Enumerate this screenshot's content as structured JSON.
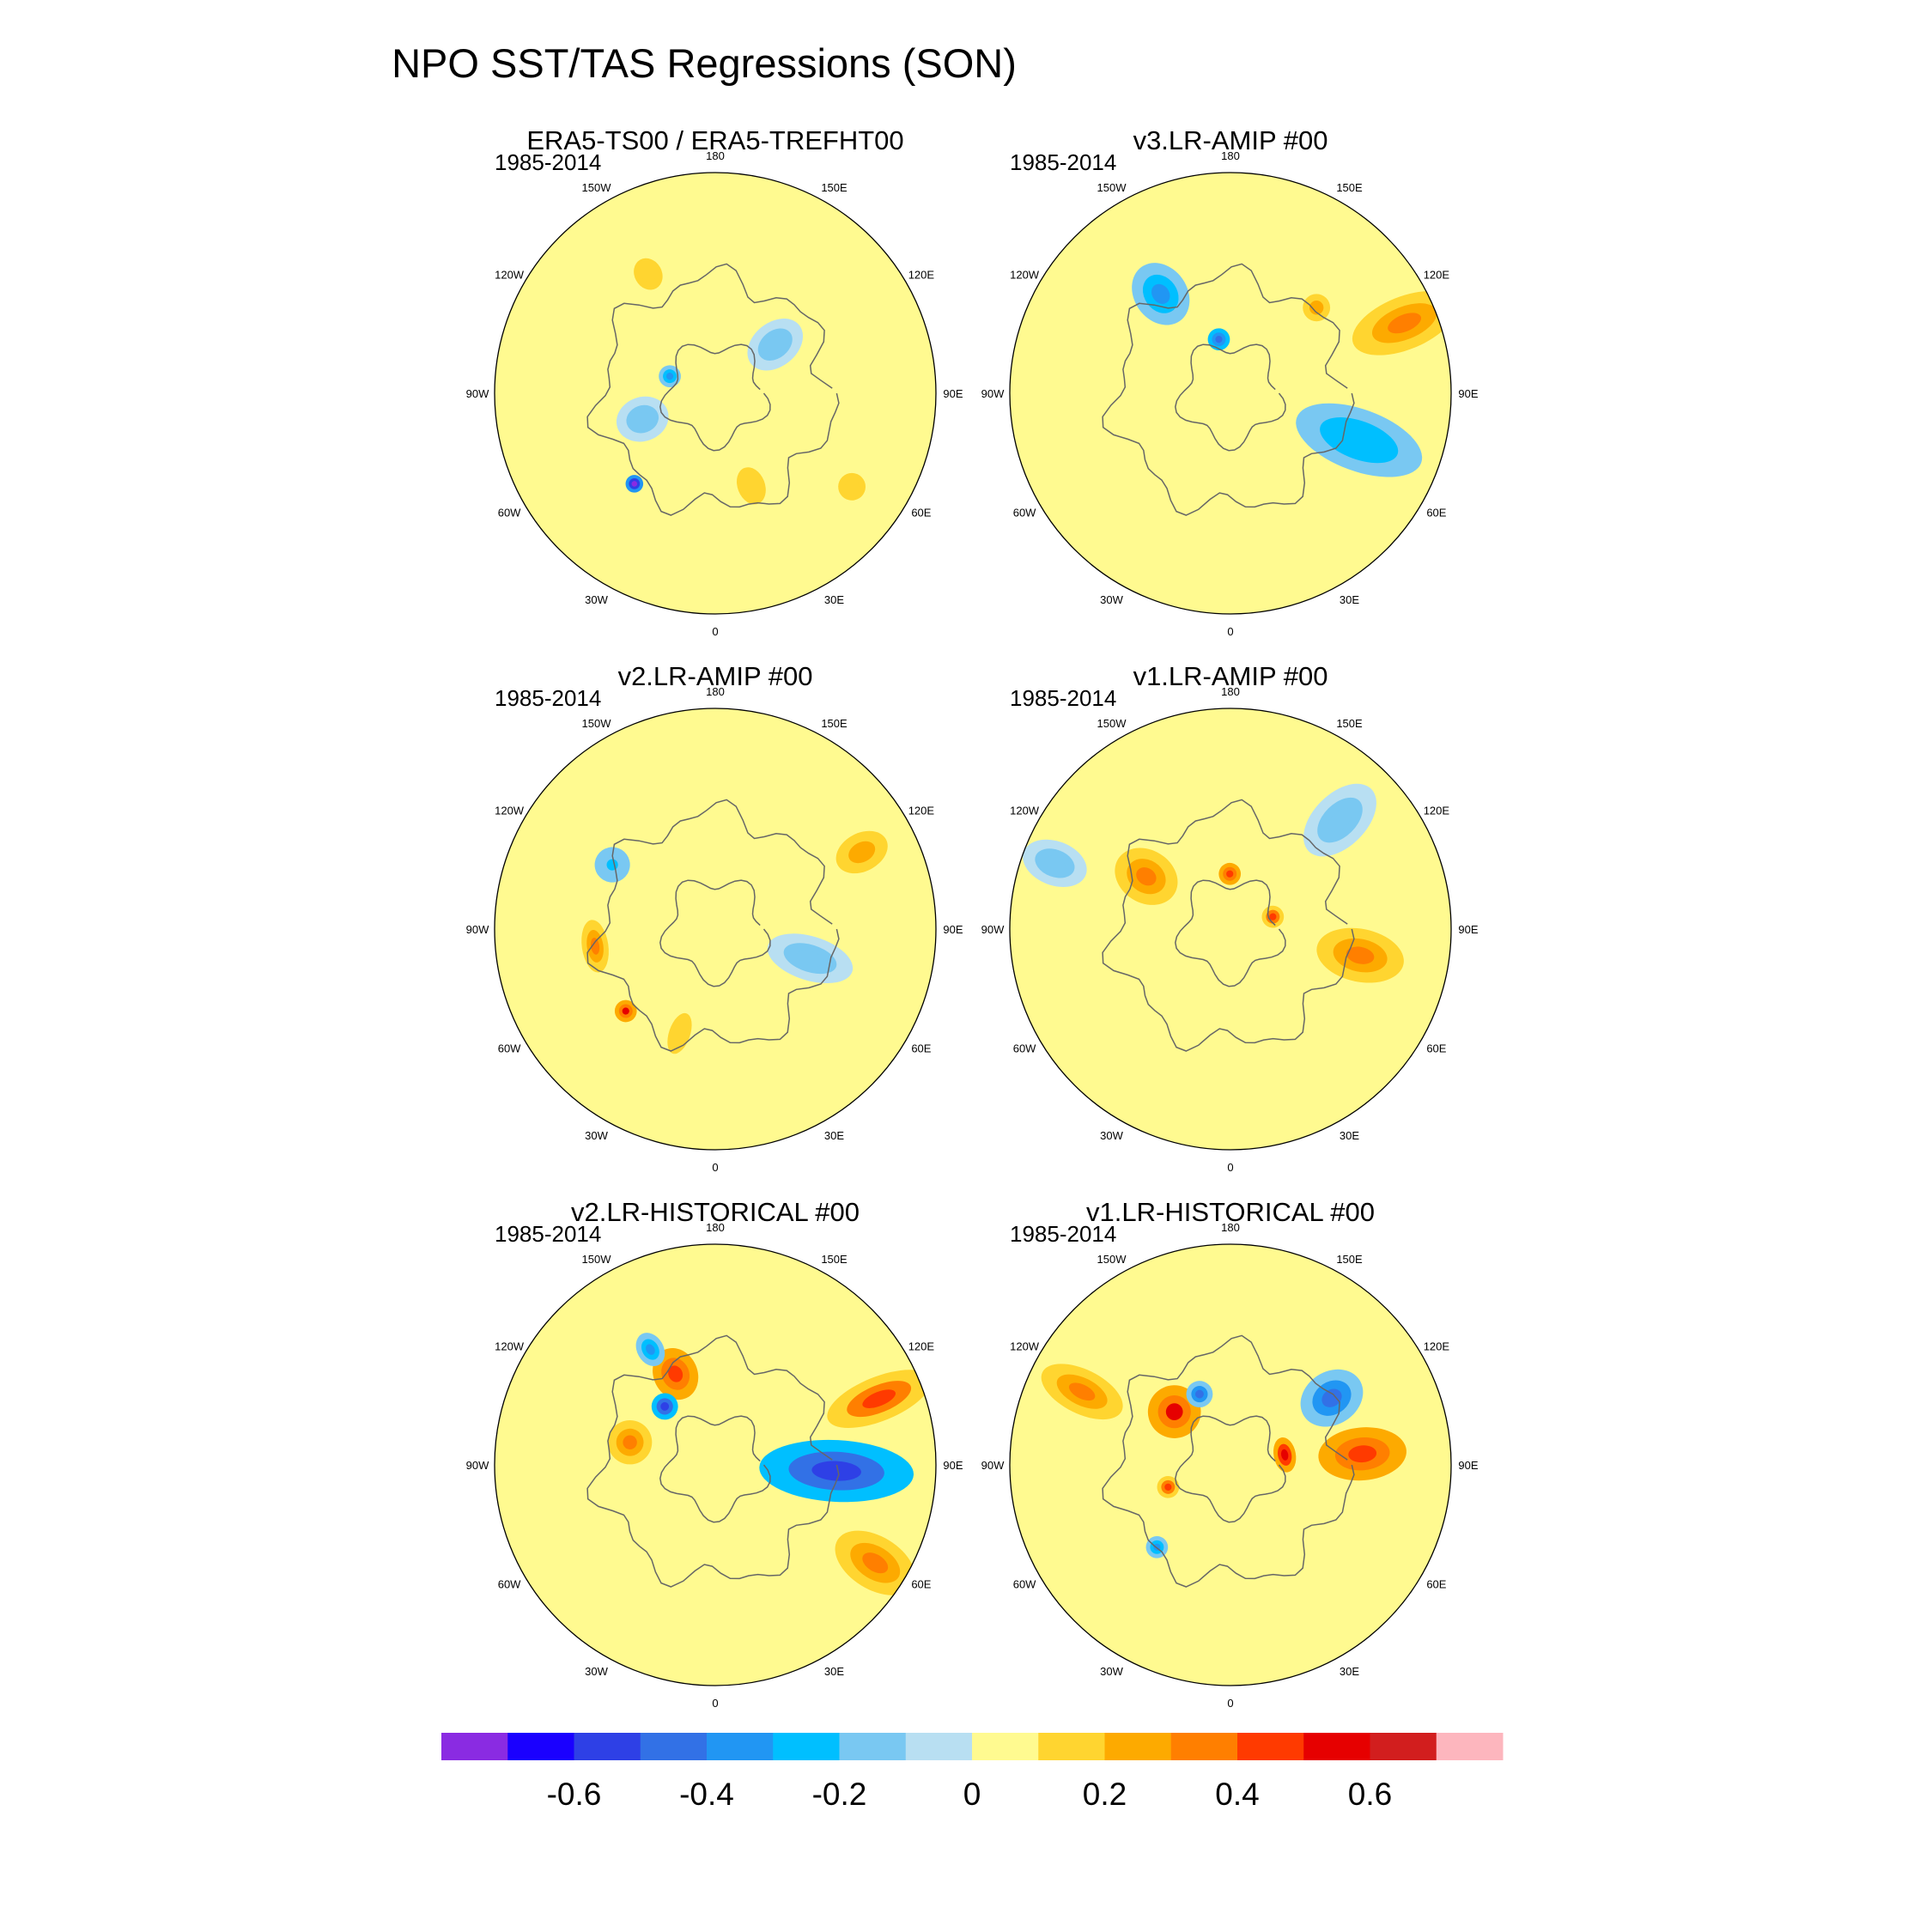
{
  "chart_data": {
    "type": "heatmap",
    "title": "NPO SST/TAS Regressions (SON)",
    "projection": "north polar stereographic",
    "longitude_labels": [
      "180",
      "150E",
      "120E",
      "90E",
      "60E",
      "30E",
      "0",
      "30W",
      "60W",
      "90W",
      "120W",
      "150W"
    ],
    "panels": [
      {
        "title": "ERA5-TS00 / ERA5-TREFHT00",
        "period": "1985-2014",
        "blobs": [
          [
            0.15,
            1.2,
            0.45,
            0.14,
            0.1
          ],
          [
            0.05,
            2.2,
            0.5,
            0.16,
            0.12
          ],
          [
            -0.15,
            2.8,
            0.35,
            0.12,
            0.1
          ],
          [
            -0.15,
            5.6,
            0.35,
            0.14,
            0.1
          ],
          [
            0.15,
            4.2,
            0.62,
            0.12,
            0.1
          ],
          [
            -0.35,
            3.5,
            0.22,
            0.05,
            0.05
          ],
          [
            -0.7,
            2.3,
            0.55,
            0.04,
            0.04
          ],
          [
            0.15,
            0.6,
            0.75,
            0.1,
            0.1
          ]
        ]
      },
      {
        "title": "v3.LR-AMIP  #00",
        "period": "1985-2014",
        "blobs": [
          [
            -0.28,
            0.35,
            0.62,
            0.3,
            0.14
          ],
          [
            0.35,
            5.9,
            0.85,
            0.25,
            0.12
          ],
          [
            0.05,
            2.5,
            0.4,
            0.2,
            0.12
          ],
          [
            -0.3,
            4.1,
            0.55,
            0.15,
            0.12
          ],
          [
            -0.45,
            4.5,
            0.25,
            0.05,
            0.05
          ],
          [
            0.2,
            5.5,
            0.55,
            0.1,
            0.1
          ]
        ]
      },
      {
        "title": "v2.LR-AMIP  #00",
        "period": "1985-2014",
        "blobs": [
          [
            0.2,
            5.8,
            0.75,
            0.2,
            0.14
          ],
          [
            -0.25,
            3.7,
            0.55,
            0.08,
            0.08
          ],
          [
            0.5,
            2.4,
            0.55,
            0.05,
            0.05
          ],
          [
            0.35,
            3.0,
            0.55,
            0.06,
            0.12
          ],
          [
            -0.15,
            0.3,
            0.45,
            0.2,
            0.1
          ],
          [
            0.1,
            1.9,
            0.5,
            0.3,
            0.15
          ]
        ]
      },
      {
        "title": "v1.LR-AMIP  #00",
        "period": "1985-2014",
        "blobs": [
          [
            0.35,
            0.2,
            0.6,
            0.2,
            0.12
          ],
          [
            -0.15,
            5.5,
            0.7,
            0.2,
            0.12
          ],
          [
            0.3,
            3.7,
            0.45,
            0.15,
            0.12
          ],
          [
            0.45,
            4.7,
            0.25,
            0.05,
            0.05
          ],
          [
            0.4,
            6.0,
            0.2,
            0.05,
            0.05
          ],
          [
            -0.15,
            3.5,
            0.85,
            0.15,
            0.1
          ]
        ]
      },
      {
        "title": "v2.LR-HISTORICAL  #00",
        "period": "1985-2014",
        "blobs": [
          [
            -0.55,
            0.05,
            0.55,
            0.35,
            0.14
          ],
          [
            0.35,
            0.55,
            0.85,
            0.2,
            0.12
          ],
          [
            0.4,
            5.9,
            0.8,
            0.25,
            0.1
          ],
          [
            0.45,
            4.3,
            0.45,
            0.12,
            0.1
          ],
          [
            -0.55,
            4.0,
            0.35,
            0.06,
            0.06
          ],
          [
            0.3,
            3.4,
            0.4,
            0.1,
            0.1
          ],
          [
            -0.3,
            4.2,
            0.6,
            0.08,
            0.06
          ]
        ]
      },
      {
        "title": "v1.LR-HISTORICAL  #00",
        "period": "1985-2014",
        "blobs": [
          [
            -0.4,
            5.7,
            0.55,
            0.15,
            0.12
          ],
          [
            0.45,
            6.2,
            0.6,
            0.2,
            0.12
          ],
          [
            0.55,
            6.1,
            0.25,
            0.05,
            0.08
          ],
          [
            0.5,
            3.9,
            0.35,
            0.12,
            0.12
          ],
          [
            0.35,
            3.6,
            0.75,
            0.2,
            0.1
          ],
          [
            -0.4,
            4.3,
            0.35,
            0.06,
            0.06
          ],
          [
            -0.35,
            2.3,
            0.5,
            0.05,
            0.05
          ],
          [
            0.4,
            2.8,
            0.3,
            0.05,
            0.05
          ]
        ]
      }
    ],
    "colorbar": {
      "levels": [
        -0.7,
        -0.6,
        -0.5,
        -0.4,
        -0.3,
        -0.2,
        -0.1,
        0,
        0.1,
        0.2,
        0.3,
        0.4,
        0.5,
        0.6,
        0.7
      ],
      "colors": [
        "#8A2BE2",
        "#1A00FF",
        "#2E40E6",
        "#3271E6",
        "#2196F3",
        "#00BFFF",
        "#79C8F2",
        "#B8DFF2",
        "#FFFA90",
        "#FFD530",
        "#FDAA00",
        "#FF7F00",
        "#FF3A00",
        "#E60000",
        "#D21E1E",
        "#FDB6BE"
      ],
      "tick_labels": [
        "-0.6",
        "-0.4",
        "-0.2",
        "0",
        "0.2",
        "0.4",
        "0.6"
      ],
      "tick_values": [
        -0.6,
        -0.4,
        -0.2,
        0,
        0.2,
        0.4,
        0.6
      ]
    }
  }
}
